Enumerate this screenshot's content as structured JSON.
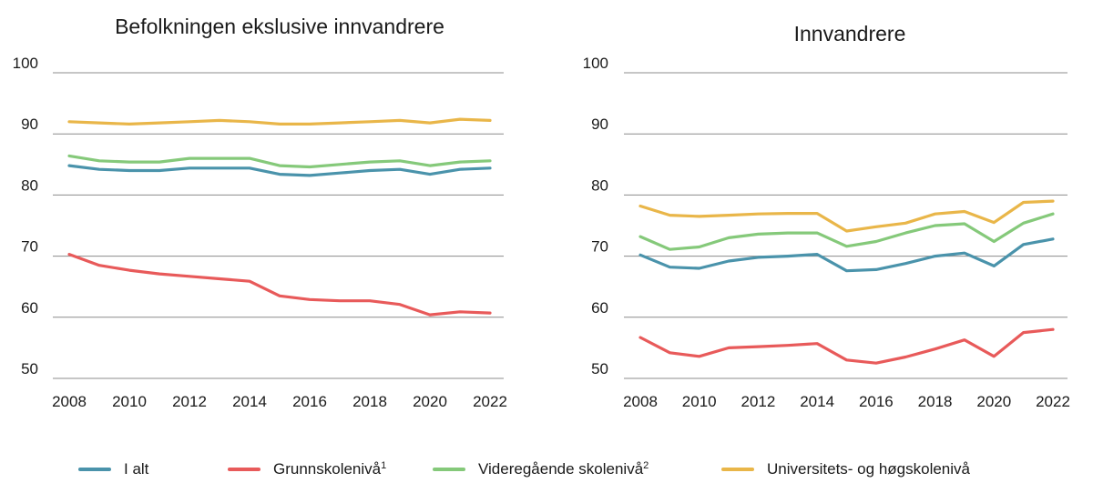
{
  "colors": {
    "I alt": "#4a93ab",
    "Grunnskolenivå": "#e85a5a",
    "Videregående skolenivå": "#85c97a",
    "Universitets- og høgskolenivå": "#e9b649"
  },
  "legend": [
    {
      "name": "I alt",
      "sup": ""
    },
    {
      "name": "Grunnskolenivå",
      "sup": "1"
    },
    {
      "name": "Videregående skolenivå",
      "sup": "2"
    },
    {
      "name": "Universitets- og høgskolenivå",
      "sup": ""
    }
  ],
  "chart_data": [
    {
      "type": "line",
      "title": "Befolkningen ekslusive innvandrere",
      "x": [
        2008,
        2009,
        2010,
        2011,
        2012,
        2013,
        2014,
        2015,
        2016,
        2017,
        2018,
        2019,
        2020,
        2021,
        2022
      ],
      "xticks": [
        "2008",
        "2010",
        "2012",
        "2014",
        "2016",
        "2018",
        "2020",
        "2022"
      ],
      "yticks": [
        "50",
        "60",
        "70",
        "80",
        "90",
        "100"
      ],
      "ylim": [
        50,
        100
      ],
      "xlim": [
        2008,
        2022
      ],
      "series": [
        {
          "name": "I alt",
          "values": [
            84.8,
            84.2,
            84.0,
            84.0,
            84.4,
            84.4,
            84.4,
            83.4,
            83.2,
            83.6,
            84.0,
            84.2,
            83.4,
            84.2,
            84.4
          ]
        },
        {
          "name": "Grunnskolenivå",
          "values": [
            70.3,
            68.5,
            67.7,
            67.1,
            66.7,
            66.3,
            65.9,
            63.5,
            62.9,
            62.7,
            62.7,
            62.1,
            60.4,
            60.9,
            60.7
          ]
        },
        {
          "name": "Videregående skolenivå",
          "values": [
            86.4,
            85.6,
            85.4,
            85.4,
            86.0,
            86.0,
            86.0,
            84.8,
            84.6,
            85.0,
            85.4,
            85.6,
            84.8,
            85.4,
            85.6
          ]
        },
        {
          "name": "Universitets- og høgskolenivå",
          "values": [
            92.0,
            91.8,
            91.6,
            91.8,
            92.0,
            92.2,
            92.0,
            91.6,
            91.6,
            91.8,
            92.0,
            92.2,
            91.8,
            92.4,
            92.2
          ]
        }
      ]
    },
    {
      "type": "line",
      "title": "Innvandrere",
      "x": [
        2008,
        2009,
        2010,
        2011,
        2012,
        2013,
        2014,
        2015,
        2016,
        2017,
        2018,
        2019,
        2020,
        2021,
        2022
      ],
      "xticks": [
        "2008",
        "2010",
        "2012",
        "2014",
        "2016",
        "2018",
        "2020",
        "2022"
      ],
      "yticks": [
        "50",
        "60",
        "70",
        "80",
        "90",
        "100"
      ],
      "ylim": [
        50,
        100
      ],
      "xlim": [
        2008,
        2022
      ],
      "series": [
        {
          "name": "I alt",
          "values": [
            70.2,
            68.2,
            68.0,
            69.2,
            69.8,
            70.0,
            70.3,
            67.6,
            67.8,
            68.8,
            70.0,
            70.5,
            68.4,
            71.9,
            72.8
          ]
        },
        {
          "name": "Grunnskolenivå",
          "values": [
            56.7,
            54.2,
            53.6,
            55.0,
            55.2,
            55.4,
            55.7,
            53.0,
            52.5,
            53.5,
            54.8,
            56.3,
            53.6,
            57.5,
            58.0
          ]
        },
        {
          "name": "Videregående skolenivå",
          "values": [
            73.2,
            71.1,
            71.5,
            73.0,
            73.6,
            73.8,
            73.8,
            71.6,
            72.4,
            73.8,
            75.0,
            75.3,
            72.4,
            75.4,
            76.9
          ]
        },
        {
          "name": "Universitets- og høgskolenivå",
          "values": [
            78.2,
            76.7,
            76.5,
            76.7,
            76.9,
            77.0,
            77.0,
            74.1,
            74.8,
            75.4,
            76.9,
            77.3,
            75.5,
            78.8,
            79.0
          ]
        }
      ]
    }
  ]
}
